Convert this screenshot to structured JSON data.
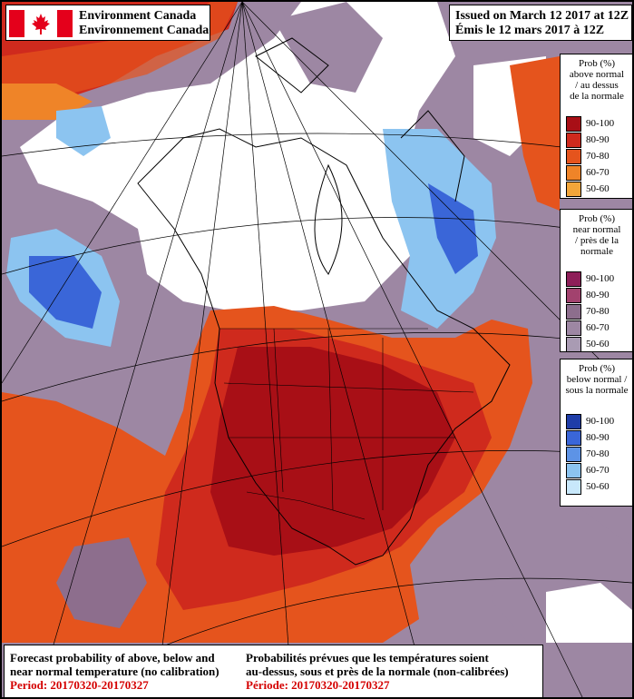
{
  "brand": {
    "line_en": "Environment Canada",
    "line_fr": "Environnement Canada",
    "flag_color": "#e4001b"
  },
  "issued": {
    "line_en": "Issued on March 12 2017 at 12Z",
    "line_fr": "Émis le 12 mars 2017 à 12Z"
  },
  "legends": {
    "above": {
      "title": [
        "Prob (%)",
        "above normal",
        "/ au dessus",
        "de la normale"
      ],
      "classes": [
        {
          "label": "90-100",
          "color": "#a80f16"
        },
        {
          "label": "80-90",
          "color": "#cf2a1d"
        },
        {
          "label": "70-80",
          "color": "#e5541d"
        },
        {
          "label": "60-70",
          "color": "#ef8428"
        },
        {
          "label": "50-60",
          "color": "#f2a63a"
        }
      ]
    },
    "near": {
      "title": [
        "Prob (%)",
        "near normal",
        "/ près de la",
        "normale"
      ],
      "classes": [
        {
          "label": "90-100",
          "color": "#8e1f59"
        },
        {
          "label": "80-90",
          "color": "#a2426e"
        },
        {
          "label": "70-80",
          "color": "#8d6e8d"
        },
        {
          "label": "60-70",
          "color": "#9d87a3"
        },
        {
          "label": "50-60",
          "color": "#a99bb3"
        }
      ]
    },
    "below": {
      "title": [
        "Prob (%)",
        "below normal /",
        "sous la normale"
      ],
      "classes": [
        {
          "label": "90-100",
          "color": "#1f3da8"
        },
        {
          "label": "80-90",
          "color": "#3a66d8"
        },
        {
          "label": "70-80",
          "color": "#5d93e6"
        },
        {
          "label": "60-70",
          "color": "#8cc4f0"
        },
        {
          "label": "50-60",
          "color": "#c8e8fb"
        }
      ]
    }
  },
  "footer": {
    "en_line1": "Forecast probability of above, below and",
    "en_line2": "near normal temperature (no calibration)",
    "en_period": "Period: 20170320-20170327",
    "fr_line1": "Probabilités prévues que les températures soient",
    "fr_line2": "au-dessus, sous et près de la normale (non-calibrées)",
    "fr_period": "Période: 20170320-20170327"
  }
}
